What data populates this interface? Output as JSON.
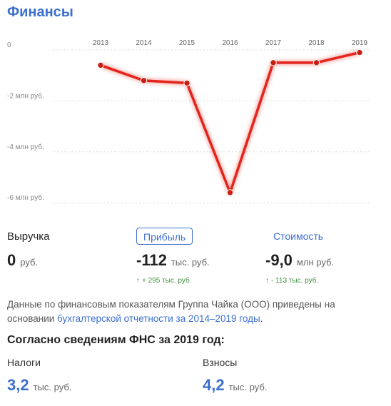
{
  "section_title": "Финансы",
  "chart_data": {
    "type": "line",
    "x": [
      "2013",
      "2014",
      "2015",
      "2016",
      "2017",
      "2018",
      "2019"
    ],
    "series": [
      {
        "values": [
          -0.6,
          -1.2,
          -1.3,
          -5.6,
          -0.5,
          -0.5,
          -0.1
        ]
      }
    ],
    "y_tick_labels": [
      "0",
      "-2 млн руб.",
      "-4 млн руб.",
      "-6 млн руб."
    ],
    "y_tick_values": [
      0,
      -2,
      -4,
      -6
    ],
    "ylim": [
      -6.2,
      0.3
    ],
    "grid": "horizontal",
    "color": "#e3241b"
  },
  "metrics": {
    "revenue": {
      "label": "Выручка",
      "value": "0",
      "unit": "руб."
    },
    "profit": {
      "label": "Прибыль",
      "value": "-112",
      "unit": "тыс. руб.",
      "delta_arrow": "↑",
      "delta": "+ 295 тыс. руб."
    },
    "cost": {
      "label": "Стоимость",
      "value": "-9,0",
      "unit": "млн руб.",
      "delta_arrow": "↑",
      "delta": "- 113 тыс. руб."
    }
  },
  "description": {
    "text_before": "Данные по финансовым показателям Группа Чайка (ООО) приведены на основании ",
    "link": "бухгалтерской отчетности за 2014–2019 годы",
    "text_after": "."
  },
  "fns": {
    "heading": "Согласно сведениям ФНС за 2019 год:",
    "taxes": {
      "label": "Налоги",
      "value": "3,2",
      "unit": "тыс. руб."
    },
    "contributions": {
      "label": "Взносы",
      "value": "4,2",
      "unit": "тыс. руб."
    }
  }
}
